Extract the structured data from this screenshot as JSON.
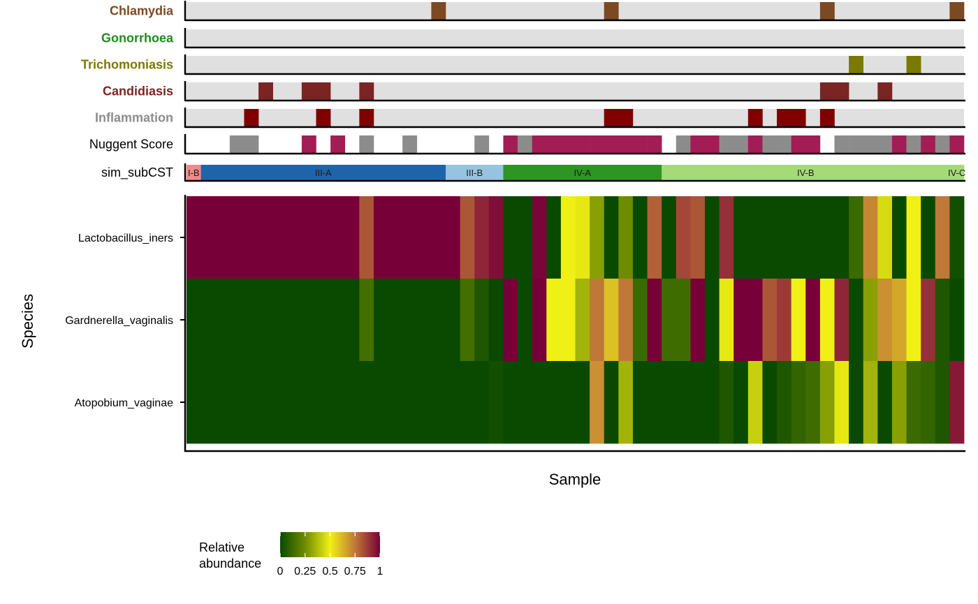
{
  "chart_data": {
    "type": "heatmap",
    "xlabel": "Sample",
    "ylabel": "Species",
    "n_samples": 54,
    "annotation_tracks": [
      {
        "name": "Chlamydia",
        "label_color": "#7b4a22",
        "fill": "#7b4a22",
        "positive_samples": [
          17,
          29,
          44,
          53
        ]
      },
      {
        "name": "Gonorrhoea",
        "label_color": "#1e8c1e",
        "fill": "#1e8c1e",
        "positive_samples": []
      },
      {
        "name": "Trichomoniasis",
        "label_color": "#7a7a00",
        "fill": "#7a7a00",
        "positive_samples": [
          46,
          50
        ]
      },
      {
        "name": "Candidiasis",
        "label_color": "#7b2424",
        "fill": "#7b2424",
        "positive_samples": [
          5,
          8,
          9,
          12,
          44,
          45,
          48
        ]
      },
      {
        "name": "Inflammation",
        "label_color": "#8c8c8c",
        "fill": "#800000",
        "positive_samples": [
          4,
          9,
          12,
          29,
          30,
          39,
          41,
          42,
          44
        ]
      }
    ],
    "nugent_track": {
      "name": "Nuggent Score",
      "categories": {
        "g": "#8c8c8c",
        "m": "#a31d55"
      },
      "values": [
        "",
        "",
        "",
        "g",
        "g",
        "",
        "",
        "",
        "m",
        "",
        "m",
        "",
        "g",
        "",
        "",
        "g",
        "",
        "",
        "",
        "",
        "g",
        "",
        "m",
        "g",
        "m",
        "m",
        "m",
        "m",
        "m",
        "m",
        "m",
        "m",
        "m",
        "",
        "g",
        "m",
        "m",
        "g",
        "g",
        "m",
        "g",
        "g",
        "m",
        "m",
        "",
        "g",
        "g",
        "g",
        "g",
        "m",
        "g",
        "m",
        "g",
        "m"
      ]
    },
    "subcst_track": {
      "name": "sim_subCST",
      "segments": [
        {
          "label": "I-B",
          "start": 0,
          "end": 1,
          "color": "#f28a8a"
        },
        {
          "label": "III-A",
          "start": 1,
          "end": 18,
          "color": "#1f64a8"
        },
        {
          "label": "III-B",
          "start": 18,
          "end": 22,
          "color": "#96c3e0"
        },
        {
          "label": "IV-A",
          "start": 22,
          "end": 33,
          "color": "#2e9424"
        },
        {
          "label": "IV-B",
          "start": 33,
          "end": 53,
          "color": "#a4da78"
        },
        {
          "label": "IV-C",
          "start": 53,
          "end": 54,
          "color": "#a4da78"
        }
      ]
    },
    "species": [
      "Lactobacillus_iners",
      "Gardnerella_vaginalis",
      "Atopobium_vaginae"
    ],
    "values": [
      [
        1,
        1,
        1,
        1,
        1,
        1,
        1,
        1,
        1,
        1,
        1,
        1,
        0.82,
        1,
        1,
        1,
        1,
        1,
        1,
        0.82,
        0.92,
        0.97,
        0.0,
        0.0,
        0.99,
        0.0,
        0.5,
        0.48,
        0.3,
        0.0,
        0.25,
        0.0,
        0.8,
        0.0,
        0.85,
        0.82,
        0.0,
        0.9,
        0.0,
        0.0,
        0.0,
        0.0,
        0.0,
        0.0,
        0.0,
        0.0,
        0.12,
        0.72,
        0.45,
        0.0,
        0.5,
        0.0,
        0.75,
        0.02
      ],
      [
        0.0,
        0.0,
        0.0,
        0.0,
        0.0,
        0.0,
        0.0,
        0.0,
        0.0,
        0.0,
        0.0,
        0.0,
        0.14,
        0.0,
        0.0,
        0.0,
        0.0,
        0.0,
        0.0,
        0.14,
        0.05,
        0.0,
        1,
        0.0,
        1,
        0.5,
        0.5,
        0.35,
        0.75,
        0.6,
        0.75,
        0.12,
        1,
        0.13,
        0.13,
        1,
        0.0,
        0.48,
        1,
        1,
        0.82,
        0.88,
        0.5,
        1,
        0.5,
        0.92,
        0.0,
        0.3,
        0.7,
        0.65,
        0.5,
        0.9,
        0.05,
        0.0
      ],
      [
        0.0,
        0.0,
        0.0,
        0.0,
        0.0,
        0.0,
        0.0,
        0.0,
        0.0,
        0.0,
        0.0,
        0.0,
        0.0,
        0.0,
        0.0,
        0.0,
        0.0,
        0.0,
        0.0,
        0.0,
        0.0,
        0.02,
        0.0,
        0.0,
        0.0,
        0.0,
        0.0,
        0.0,
        0.7,
        0.0,
        0.35,
        0.0,
        0.0,
        0.0,
        0.0,
        0.0,
        0.0,
        0.05,
        0.0,
        0.42,
        0.0,
        0.05,
        0.1,
        0.13,
        0.3,
        0.48,
        0.0,
        0.35,
        0.0,
        0.3,
        0.12,
        0.1,
        0.05,
        0.95
      ]
    ],
    "colorscale": [
      {
        "stop": 0,
        "color": "#0a4a00"
      },
      {
        "stop": 0.25,
        "color": "#6e8c00"
      },
      {
        "stop": 0.5,
        "color": "#f0f016"
      },
      {
        "stop": 0.75,
        "color": "#c07838"
      },
      {
        "stop": 1,
        "color": "#780038"
      }
    ],
    "legend": {
      "title_line1": "Relative",
      "title_line2": "abundance",
      "ticks": [
        "0",
        "0.25",
        "0.5",
        "0.75",
        "1"
      ],
      "placement": "bottom-left"
    }
  }
}
